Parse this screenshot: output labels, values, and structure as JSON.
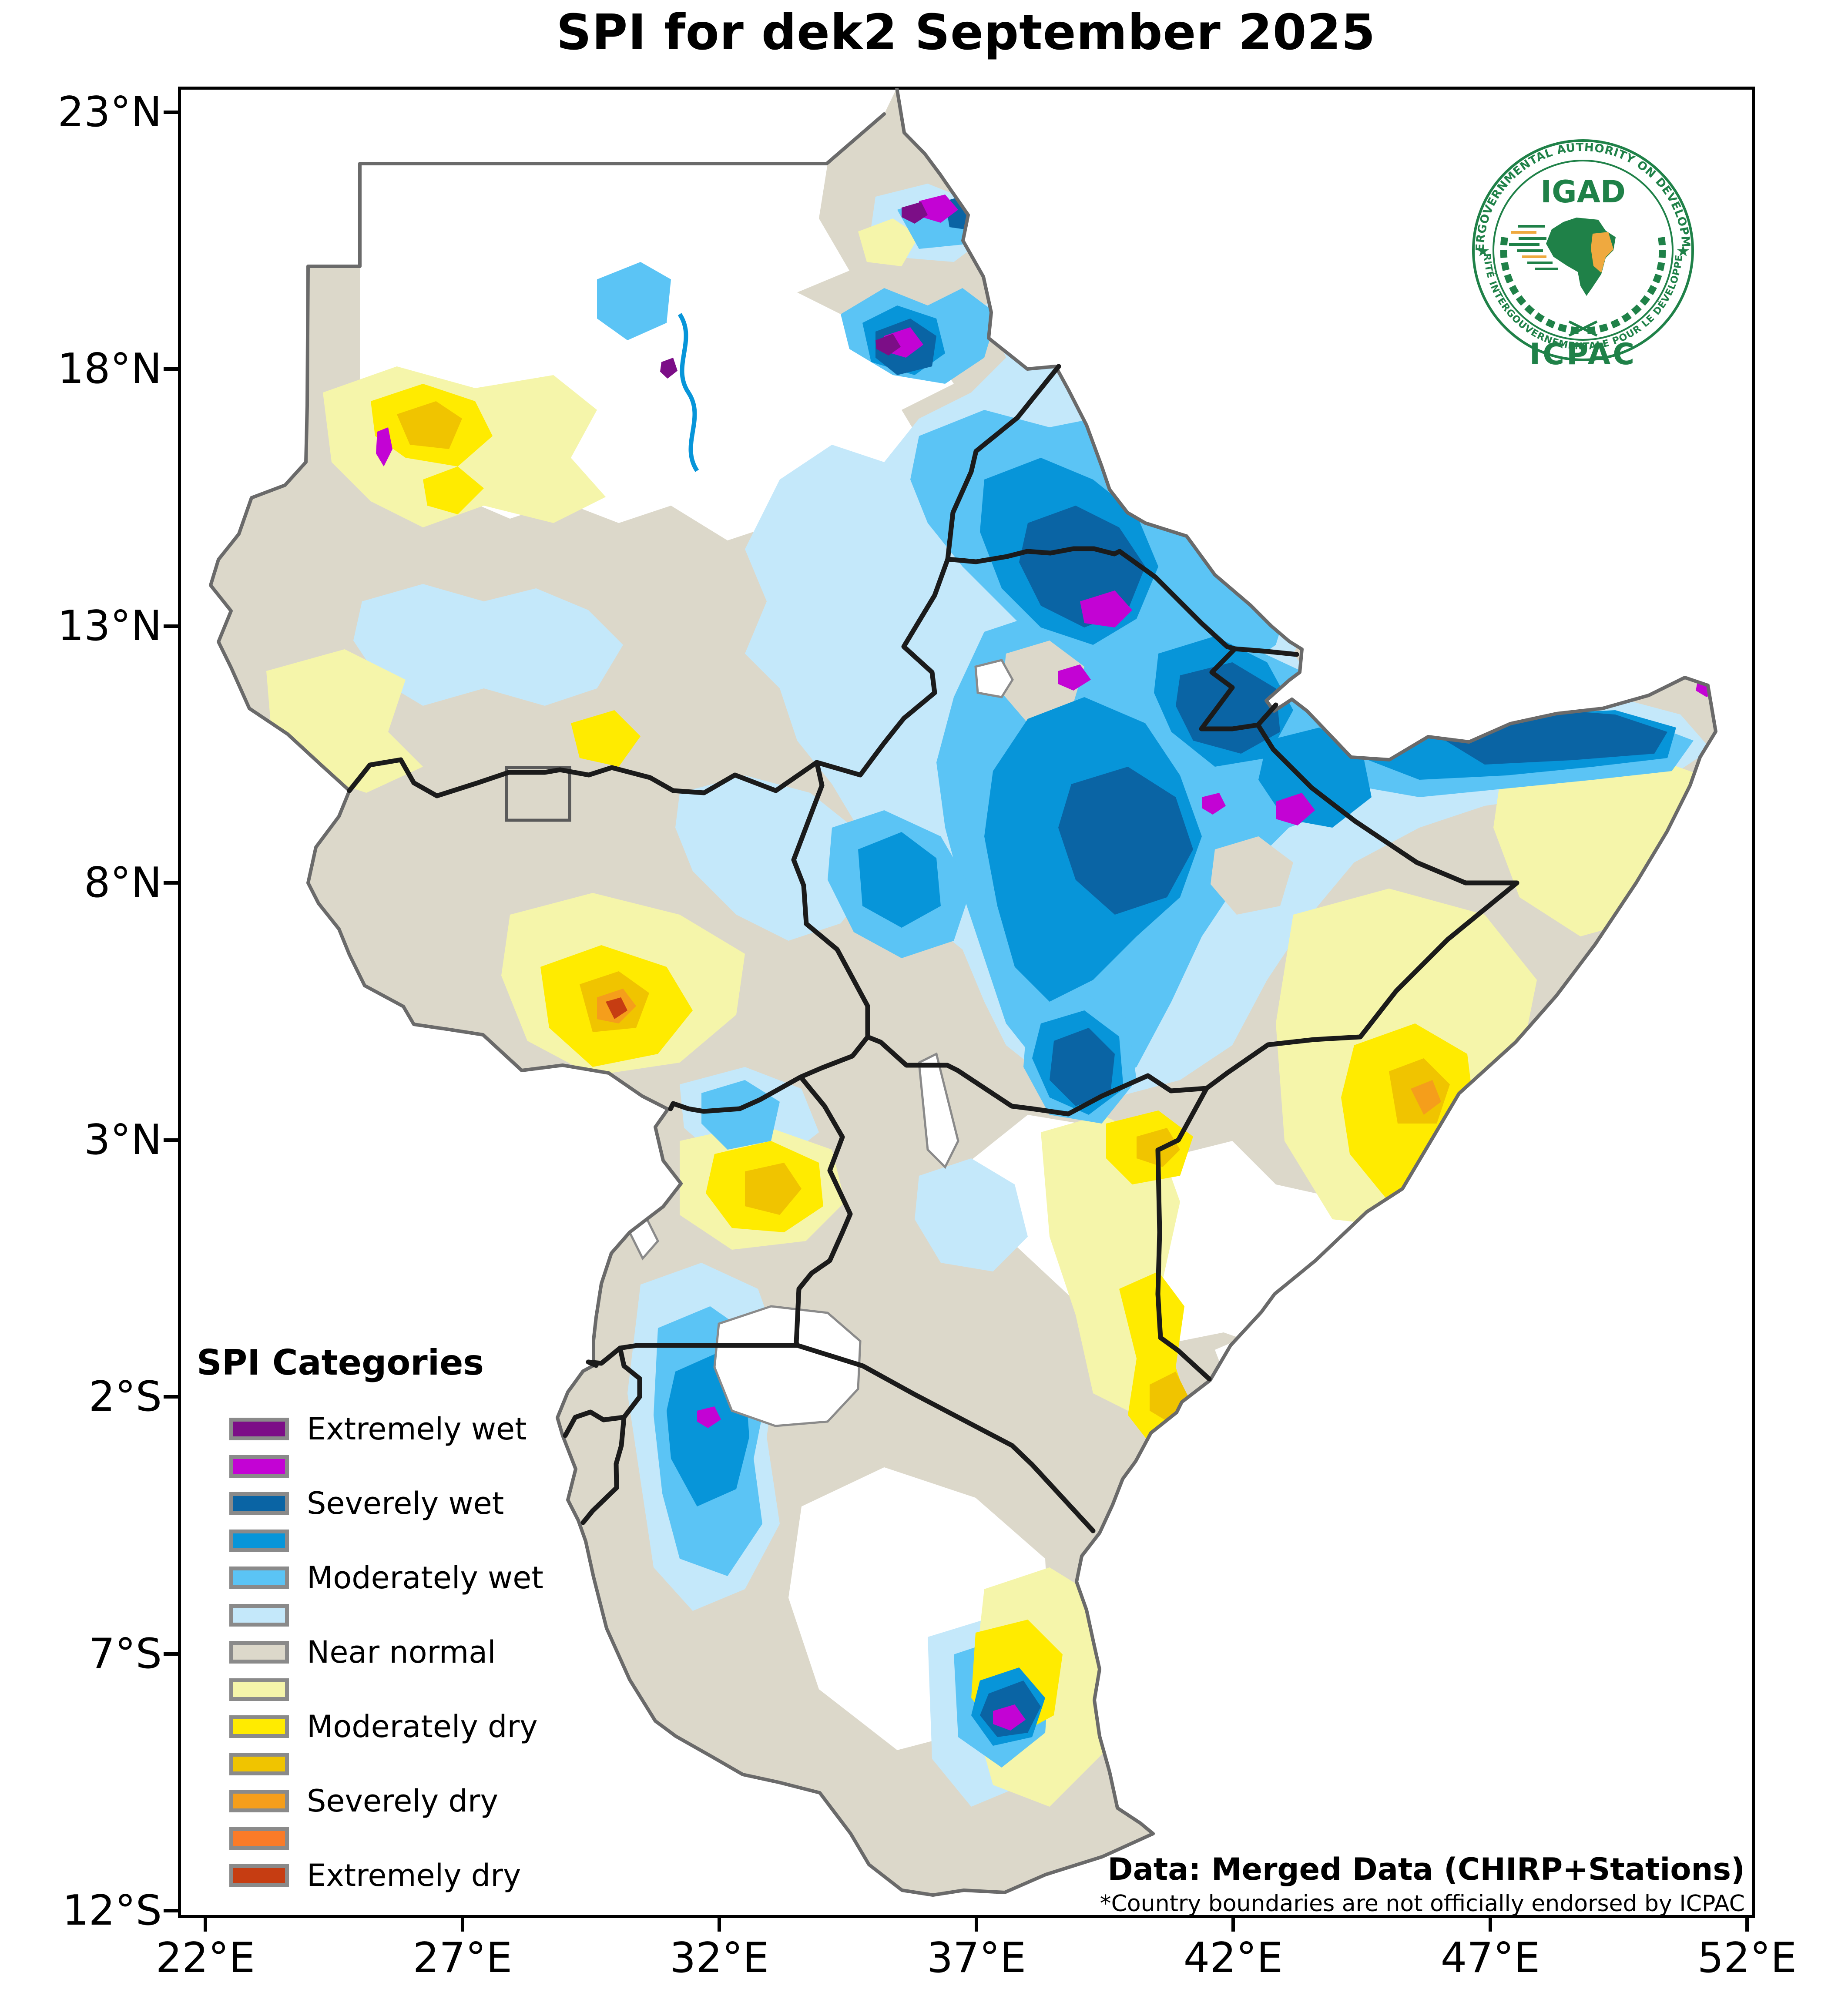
{
  "title": "SPI for dek2 September 2025",
  "axes": {
    "lat_ticks": [
      "23°N",
      "18°N",
      "13°N",
      "8°N",
      "3°N",
      "2°S",
      "7°S",
      "12°S"
    ],
    "lon_ticks": [
      "22°E",
      "27°E",
      "32°E",
      "37°E",
      "42°E",
      "47°E",
      "52°E"
    ]
  },
  "legend": {
    "title": "SPI Categories",
    "items": [
      {
        "label": "Extremely wet",
        "color": "#7C0E87"
      },
      {
        "label": "",
        "color": "#C303D4"
      },
      {
        "label": "Severely wet",
        "color": "#0A64A4"
      },
      {
        "label": "",
        "color": "#0795D9"
      },
      {
        "label": "Moderately wet",
        "color": "#5BC4F5"
      },
      {
        "label": "",
        "color": "#C4E8FA"
      },
      {
        "label": "Near normal",
        "color": "#DCD8CA"
      },
      {
        "label": "",
        "color": "#F5F5AA"
      },
      {
        "label": "Moderately dry",
        "color": "#FFEB00"
      },
      {
        "label": "",
        "color": "#F0C400"
      },
      {
        "label": "Severely dry",
        "color": "#F59E1B"
      },
      {
        "label": "",
        "color": "#FA7B28"
      },
      {
        "label": "Extremely dry",
        "color": "#C63D12"
      }
    ]
  },
  "attribution": {
    "line1": "Data: Merged Data (CHIRP+Stations)",
    "line2": "*Country boundaries are not officially endorsed by ICPAC"
  },
  "logo": {
    "org": "IGAD",
    "center_label": "ICPAC",
    "arc_top": "INTERGOVERNMENTAL AUTHORITY ON DEVELOPMENT",
    "arc_bottom": "AUTORITÉ INTERGOUVERNEMENTALE POUR LE DÉVELOPPEMENT",
    "green": "#1F8148",
    "orange": "#EFA93F"
  },
  "map": {
    "border_colors": {
      "international": "#6a6a6a",
      "igad_internal": "#1b1b1b"
    },
    "no_data_color": "#ffffff",
    "regions_summary": [
      {
        "area": "Northern Sudan desert",
        "category": "no data (white)"
      },
      {
        "area": "Central Sudan belt",
        "category": "Near normal"
      },
      {
        "area": "Western Sudan (Darfur)",
        "category": "Moderately dry patches"
      },
      {
        "area": "Eastern Sudan / Eritrea / N. Ethiopia",
        "category": "Moderately to severely wet, local extremely wet spots"
      },
      {
        "area": "Ethiopian highlands and Afar",
        "category": "Moderately to severely wet, magenta extreme spots"
      },
      {
        "area": "Northern Somalia coast",
        "category": "Severely wet band"
      },
      {
        "area": "Central Somalia",
        "category": "Moderately dry"
      },
      {
        "area": "South Sudan",
        "category": "Near normal with wet patches, dry southwest"
      },
      {
        "area": "Uganda centre",
        "category": "Moderately dry core"
      },
      {
        "area": "Eastern Kenya coast strip",
        "category": "Moderately dry"
      },
      {
        "area": "Lake Victoria west (Kagera)",
        "category": "Moderately wet"
      },
      {
        "area": "Central Tanzania",
        "category": "No data / near normal, wet+dry mosaic south"
      }
    ]
  }
}
